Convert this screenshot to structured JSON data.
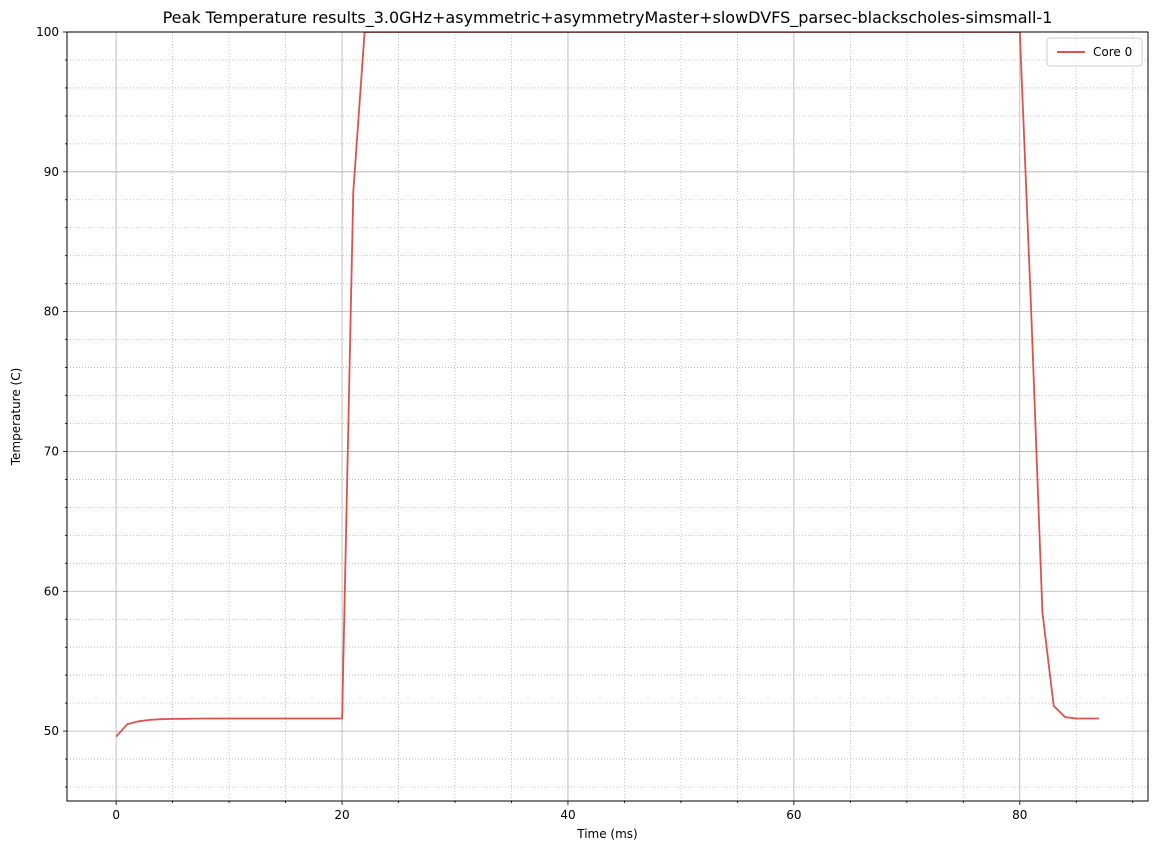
{
  "chart_data": {
    "type": "line",
    "title": "Peak Temperature results_3.0GHz+asymmetric+asymmetryMaster+slowDVFS_parsec-blackscholes-simsmall-1",
    "xlabel": "Time (ms)",
    "ylabel": "Temperature (C)",
    "xlim": [
      -4.35,
      91.35
    ],
    "ylim": [
      45,
      100
    ],
    "x_major_ticks": [
      0,
      20,
      40,
      60,
      80
    ],
    "x_minor_step": 5,
    "y_major_ticks": [
      50,
      60,
      70,
      80,
      90,
      100
    ],
    "y_minor_step": 2,
    "grid": {
      "major": true,
      "minor": true,
      "minor_style": "dotted"
    },
    "legend": {
      "placement": "top-right"
    },
    "series": [
      {
        "name": "Core 0",
        "color": "#d9534f",
        "x": [
          0,
          1,
          2,
          3,
          4,
          5,
          6,
          7,
          8,
          9,
          10,
          11,
          12,
          13,
          14,
          15,
          16,
          17,
          18,
          19,
          20,
          21,
          22,
          80,
          81,
          82,
          83,
          84,
          85,
          86,
          87
        ],
        "y": [
          49.6,
          50.5,
          50.7,
          50.8,
          50.85,
          50.87,
          50.88,
          50.89,
          50.9,
          50.9,
          50.9,
          50.9,
          50.9,
          50.9,
          50.9,
          50.9,
          50.9,
          50.9,
          50.9,
          50.9,
          50.9,
          88.6,
          100,
          100,
          80.2,
          58.5,
          51.8,
          51.0,
          50.9,
          50.9,
          50.9
        ]
      }
    ]
  }
}
